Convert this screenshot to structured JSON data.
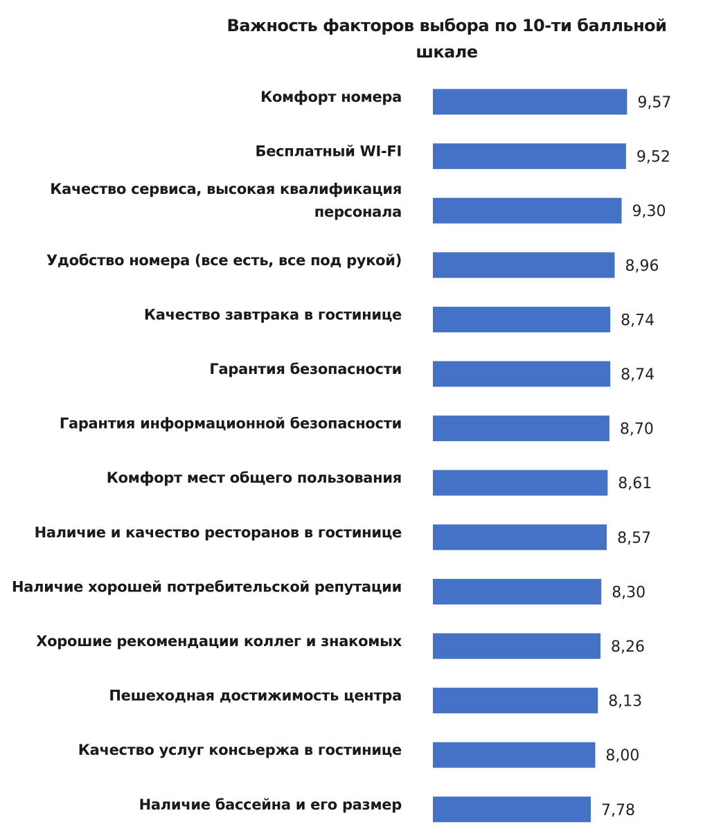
{
  "chart_data": {
    "type": "bar",
    "orientation": "horizontal",
    "title": "Важность факторов выбора по 10-ти балльной\nшкале",
    "categories": [
      [
        "Комфорт номера"
      ],
      [
        "Бесплатный WI-FI"
      ],
      [
        "Качество сервиса, высокая квалификация",
        "персонала"
      ],
      [
        "Удобство номера (все есть, все под рукой)"
      ],
      [
        "Качество завтрака в гостинице"
      ],
      [
        "Гарантия безопасности"
      ],
      [
        "Гарантия информационной безопасности"
      ],
      [
        "Комфорт мест общего пользования"
      ],
      [
        "Наличие и качество ресторанов в гостинице"
      ],
      [
        "Наличие хорошей потребительской репутации"
      ],
      [
        "Хорошие рекомендации коллег и знакомых"
      ],
      [
        "Пешеходная достижимость центра"
      ],
      [
        "Качество услуг консьержа в гостинице"
      ],
      [
        "Наличие бассейна и его размер"
      ]
    ],
    "values": [
      9.57,
      9.52,
      9.3,
      8.96,
      8.74,
      8.74,
      8.7,
      8.61,
      8.57,
      8.3,
      8.26,
      8.13,
      8.0,
      7.78
    ],
    "value_labels": [
      "9,57",
      "9,52",
      "9,30",
      "8,96",
      "8,74",
      "8,74",
      "8,70",
      "8,61",
      "8,57",
      "8,30",
      "8,26",
      "8,13",
      "8,00",
      "7,78"
    ],
    "xlim": [
      0,
      10
    ],
    "grid": false,
    "legend": "none",
    "bar_color": "#4472C4"
  }
}
